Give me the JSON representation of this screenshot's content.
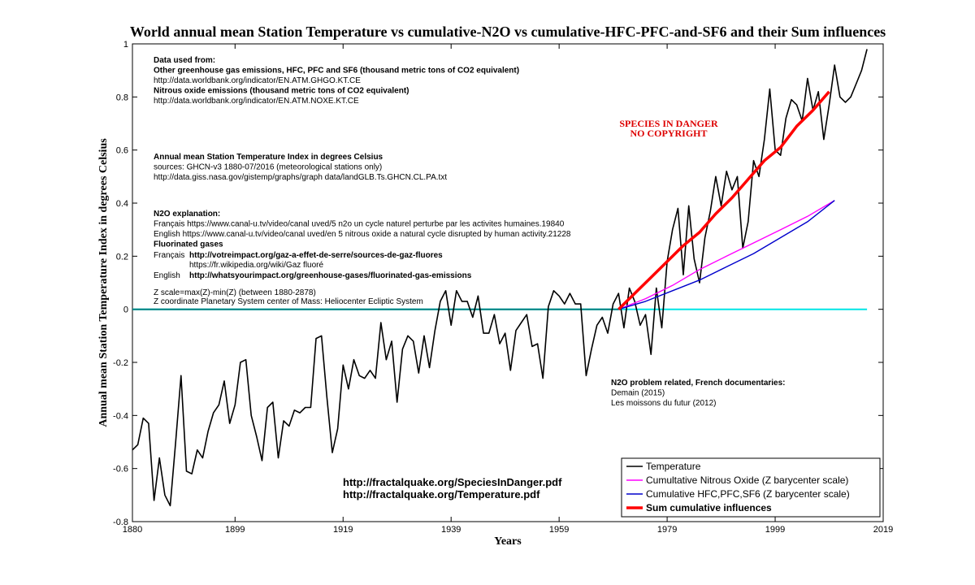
{
  "chart_data": {
    "type": "line",
    "title": "World annual mean Station Temperature vs cumulative-N2O vs cumulative-HFC-PFC-and-SF6 and their Sum influences",
    "xlabel": "Years",
    "ylabel": "Annual mean Station Temperature Index in degrees Celsius",
    "xlim": [
      1880,
      2019
    ],
    "ylim": [
      -0.8,
      1
    ],
    "x_ticks": [
      1880,
      1899,
      1919,
      1939,
      1959,
      1979,
      1999,
      2019
    ],
    "y_ticks": [
      -0.8,
      -0.6,
      -0.4,
      -0.2,
      0,
      0.2,
      0.4,
      0.6,
      0.8,
      1
    ],
    "y_tick_labels": [
      "-0.8",
      "-0.6",
      "-0.4",
      "-0.2",
      "0",
      "0.2",
      "0.4",
      "0.6",
      "0.8",
      "1"
    ],
    "grid": false,
    "legend_position": "bottom-right",
    "series": [
      {
        "name": "Temperature",
        "color": "#000000",
        "x": [
          1880,
          1881,
          1882,
          1883,
          1884,
          1885,
          1886,
          1887,
          1888,
          1889,
          1890,
          1891,
          1892,
          1893,
          1894,
          1895,
          1896,
          1897,
          1898,
          1899,
          1900,
          1901,
          1902,
          1903,
          1904,
          1905,
          1906,
          1907,
          1908,
          1909,
          1910,
          1911,
          1912,
          1913,
          1914,
          1915,
          1916,
          1917,
          1918,
          1919,
          1920,
          1921,
          1922,
          1923,
          1924,
          1925,
          1926,
          1927,
          1928,
          1929,
          1930,
          1931,
          1932,
          1933,
          1934,
          1935,
          1936,
          1937,
          1938,
          1939,
          1940,
          1941,
          1942,
          1943,
          1944,
          1945,
          1946,
          1947,
          1948,
          1949,
          1950,
          1951,
          1952,
          1953,
          1954,
          1955,
          1956,
          1957,
          1958,
          1959,
          1960,
          1961,
          1962,
          1963,
          1964,
          1965,
          1966,
          1967,
          1968,
          1969,
          1970,
          1971,
          1972,
          1973,
          1974,
          1975,
          1976,
          1977,
          1978,
          1979,
          1980,
          1981,
          1982,
          1983,
          1984,
          1985,
          1986,
          1987,
          1988,
          1989,
          1990,
          1991,
          1992,
          1993,
          1994,
          1995,
          1996,
          1997,
          1998,
          1999,
          2000,
          2001,
          2002,
          2003,
          2004,
          2005,
          2006,
          2007,
          2008,
          2009,
          2010,
          2011,
          2012,
          2013,
          2014,
          2015,
          2016
        ],
        "y": [
          -0.53,
          -0.51,
          -0.41,
          -0.43,
          -0.72,
          -0.56,
          -0.7,
          -0.74,
          -0.5,
          -0.25,
          -0.61,
          -0.62,
          -0.53,
          -0.56,
          -0.46,
          -0.39,
          -0.36,
          -0.27,
          -0.43,
          -0.36,
          -0.2,
          -0.19,
          -0.4,
          -0.48,
          -0.57,
          -0.37,
          -0.35,
          -0.56,
          -0.42,
          -0.44,
          -0.38,
          -0.39,
          -0.37,
          -0.37,
          -0.11,
          -0.1,
          -0.33,
          -0.54,
          -0.45,
          -0.21,
          -0.3,
          -0.19,
          -0.25,
          -0.26,
          -0.23,
          -0.26,
          -0.05,
          -0.19,
          -0.12,
          -0.35,
          -0.15,
          -0.1,
          -0.12,
          -0.24,
          -0.1,
          -0.22,
          -0.08,
          0.03,
          0.07,
          -0.06,
          0.07,
          0.03,
          0.03,
          -0.03,
          0.05,
          -0.09,
          -0.09,
          -0.02,
          -0.13,
          -0.09,
          -0.23,
          -0.08,
          -0.05,
          -0.02,
          -0.14,
          -0.13,
          -0.26,
          0.01,
          0.07,
          0.05,
          0.02,
          0.06,
          0.02,
          0.02,
          -0.25,
          -0.15,
          -0.06,
          -0.03,
          -0.09,
          0.02,
          0.06,
          -0.07,
          0.08,
          0.03,
          -0.06,
          -0.02,
          -0.17,
          0.08,
          -0.07,
          0.18,
          0.3,
          0.38,
          0.13,
          0.39,
          0.19,
          0.1,
          0.27,
          0.37,
          0.5,
          0.39,
          0.52,
          0.45,
          0.5,
          0.23,
          0.33,
          0.56,
          0.5,
          0.64,
          0.83,
          0.6,
          0.58,
          0.72,
          0.79,
          0.77,
          0.71,
          0.87,
          0.75,
          0.82,
          0.64,
          0.77,
          0.92,
          0.8,
          0.78,
          0.8,
          0.85,
          0.9,
          0.98
        ]
      },
      {
        "name": "Cumultative Nitrous Oxide (Z barycenter scale)",
        "color": "#ff00ff",
        "x": [
          1970,
          1975,
          1980,
          1985,
          1990,
          1995,
          2000,
          2005,
          2010
        ],
        "y": [
          0.0,
          0.04,
          0.09,
          0.15,
          0.2,
          0.25,
          0.3,
          0.35,
          0.41
        ]
      },
      {
        "name": "Cumulative HFC,PFC,SF6 (Z barycenter scale)",
        "color": "#0000cc",
        "x": [
          1970,
          1975,
          1980,
          1985,
          1990,
          1995,
          2000,
          2005,
          2010
        ],
        "y": [
          0.0,
          0.03,
          0.07,
          0.11,
          0.16,
          0.21,
          0.27,
          0.33,
          0.41
        ]
      },
      {
        "name": "Sum cumulative influences",
        "color": "#ff0000",
        "x": [
          1970,
          1973,
          1976,
          1979,
          1982,
          1985,
          1988,
          1991,
          1994,
          1997,
          2000,
          2003,
          2006,
          2009
        ],
        "y": [
          0.0,
          0.06,
          0.12,
          0.18,
          0.24,
          0.29,
          0.36,
          0.42,
          0.49,
          0.56,
          0.61,
          0.69,
          0.75,
          0.82
        ]
      },
      {
        "name": "",
        "color": "#00e5e5",
        "x": [
          1880,
          2016
        ],
        "y": [
          0,
          0
        ]
      },
      {
        "name": "",
        "color": "#008080",
        "x": [
          1880,
          1970
        ],
        "y": [
          0,
          0
        ]
      }
    ],
    "annotations": {
      "data_used_block": [
        {
          "text": "Data used from:",
          "bold": true
        },
        {
          "text": "Other greenhouse gas emissions, HFC, PFC and SF6 (thousand metric tons of CO2 equivalent)",
          "bold": true
        },
        {
          "text": "http://data.worldbank.org/indicator/EN.ATM.GHGO.KT.CE",
          "bold": false
        },
        {
          "text": "Nitrous oxide emissions (thousand metric tons of CO2 equivalent)",
          "bold": true
        },
        {
          "text": "http://data.worldbank.org/indicator/EN.ATM.NOXE.KT.CE",
          "bold": false
        }
      ],
      "temperature_block": [
        {
          "text": "Annual mean Station Temperature Index in degrees Celsius",
          "bold": true
        },
        {
          "text": "sources:  GHCN-v3 1880-07/2016 (meteorological stations only)",
          "bold": false
        },
        {
          "text": "http://data.giss.nasa.gov/gistemp/graphs/graph data/landGLB.Ts.GHCN.CL.PA.txt",
          "bold": false
        }
      ],
      "n2o_block": [
        {
          "text": "N2O explanation:",
          "bold": true
        },
        {
          "text": "Français  https://www.canal-u.tv/video/canal uved/5 n2o un cycle naturel perturbe par les activites humaines.19840",
          "bold": false
        },
        {
          "text": "English    https://www.canal-u.tv/video/canal uved/en 5 nitrous oxide a natural cycle disrupted by human activity.21228",
          "bold": false
        },
        {
          "text": "Fluorinated gases",
          "bold": true
        }
      ],
      "fluor_lines": [
        {
          "prefix": "Français",
          "text": "http://votreimpact.org/gaz-a-effet-de-serre/sources-de-gaz-fluores",
          "bold": true
        },
        {
          "prefix": "",
          "text": "https://fr.wikipedia.org/wiki/Gaz fluoré",
          "bold": false
        },
        {
          "prefix": "English",
          "text": "http://whatsyourimpact.org/greenhouse-gases/fluorinated-gas-emissions",
          "bold": true
        }
      ],
      "z_block": [
        "Z scale=max(Z)-min(Z) (between 1880-2878)",
        "Z coordinate Planetary System center of Mass: Heliocenter Ecliptic System"
      ],
      "species_line1": "SPECIES IN DANGER",
      "species_line2": "NO COPYRIGHT",
      "doc_block": [
        {
          "text": "N2O problem related, French documentaries:",
          "bold": true
        },
        {
          "text": "Demain (2015)",
          "bold": false
        },
        {
          "text": "Les moissons du futur (2012)",
          "bold": false
        }
      ],
      "url_line1": "http://fractalquake.org/SpeciesInDanger.pdf",
      "url_line2": "http://fractalquake.org/Temperature.pdf"
    }
  }
}
